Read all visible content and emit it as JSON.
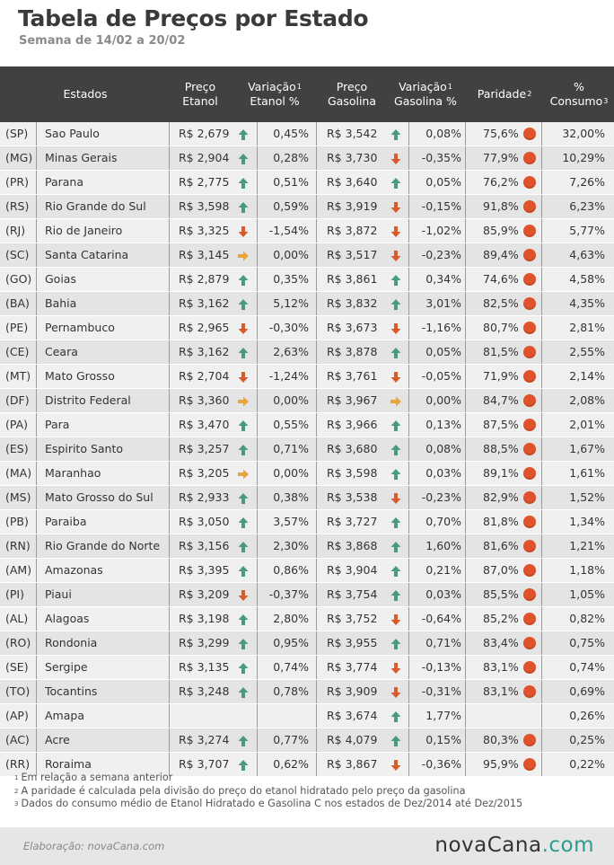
{
  "header": {
    "title": "Tabela de Preços por Estado",
    "subtitle": "Semana de 14/02 a 20/02"
  },
  "columns": {
    "estados": "Estados",
    "preco_etanol_1": "Preço",
    "preco_etanol_2": "Etanol",
    "var_etanol_1": "Variação",
    "var_etanol_sup": "1",
    "var_etanol_2": "Etanol %",
    "preco_gas_1": "Preço",
    "preco_gas_2": "Gasolina",
    "var_gas_1": "Variação",
    "var_gas_sup": "1",
    "var_gas_2": "Gasolina %",
    "paridade": "Paridade",
    "paridade_sup": "2",
    "consumo_1": "%",
    "consumo_2": "Consumo",
    "consumo_sup": "3"
  },
  "icons": {
    "up_color": "#4a9a7c",
    "down_color": "#d95a2b",
    "neutral_color": "#e9a43a",
    "dot_color": "#e0522b"
  },
  "rows": [
    {
      "abbr": "(SP)",
      "state": "Sao Paulo",
      "p_etanol": "R$ 2,679",
      "e_dir": "up",
      "v_etanol": "0,45%",
      "p_gas": "R$ 3,542",
      "g_dir": "up",
      "v_gas": "0,08%",
      "paridade": "75,6%",
      "consumo": "32,00%"
    },
    {
      "abbr": "(MG)",
      "state": "Minas Gerais",
      "p_etanol": "R$ 2,904",
      "e_dir": "up",
      "v_etanol": "0,28%",
      "p_gas": "R$ 3,730",
      "g_dir": "down",
      "v_gas": "-0,35%",
      "paridade": "77,9%",
      "consumo": "10,29%"
    },
    {
      "abbr": "(PR)",
      "state": "Parana",
      "p_etanol": "R$ 2,775",
      "e_dir": "up",
      "v_etanol": "0,51%",
      "p_gas": "R$ 3,640",
      "g_dir": "up",
      "v_gas": "0,05%",
      "paridade": "76,2%",
      "consumo": "7,26%"
    },
    {
      "abbr": "(RS)",
      "state": "Rio Grande do Sul",
      "p_etanol": "R$ 3,598",
      "e_dir": "up",
      "v_etanol": "0,59%",
      "p_gas": "R$ 3,919",
      "g_dir": "down",
      "v_gas": "-0,15%",
      "paridade": "91,8%",
      "consumo": "6,23%"
    },
    {
      "abbr": "(RJ)",
      "state": "Rio de Janeiro",
      "p_etanol": "R$ 3,325",
      "e_dir": "down",
      "v_etanol": "-1,54%",
      "p_gas": "R$ 3,872",
      "g_dir": "down",
      "v_gas": "-1,02%",
      "paridade": "85,9%",
      "consumo": "5,77%"
    },
    {
      "abbr": "(SC)",
      "state": "Santa Catarina",
      "p_etanol": "R$ 3,145",
      "e_dir": "neutral",
      "v_etanol": "0,00%",
      "p_gas": "R$ 3,517",
      "g_dir": "down",
      "v_gas": "-0,23%",
      "paridade": "89,4%",
      "consumo": "4,63%"
    },
    {
      "abbr": "(GO)",
      "state": "Goias",
      "p_etanol": "R$ 2,879",
      "e_dir": "up",
      "v_etanol": "0,35%",
      "p_gas": "R$ 3,861",
      "g_dir": "up",
      "v_gas": "0,34%",
      "paridade": "74,6%",
      "consumo": "4,58%"
    },
    {
      "abbr": "(BA)",
      "state": "Bahia",
      "p_etanol": "R$ 3,162",
      "e_dir": "up",
      "v_etanol": "5,12%",
      "p_gas": "R$ 3,832",
      "g_dir": "up",
      "v_gas": "3,01%",
      "paridade": "82,5%",
      "consumo": "4,35%"
    },
    {
      "abbr": "(PE)",
      "state": "Pernambuco",
      "p_etanol": "R$ 2,965",
      "e_dir": "down",
      "v_etanol": "-0,30%",
      "p_gas": "R$ 3,673",
      "g_dir": "down",
      "v_gas": "-1,16%",
      "paridade": "80,7%",
      "consumo": "2,81%"
    },
    {
      "abbr": "(CE)",
      "state": "Ceara",
      "p_etanol": "R$ 3,162",
      "e_dir": "up",
      "v_etanol": "2,63%",
      "p_gas": "R$ 3,878",
      "g_dir": "up",
      "v_gas": "0,05%",
      "paridade": "81,5%",
      "consumo": "2,55%"
    },
    {
      "abbr": "(MT)",
      "state": "Mato Grosso",
      "p_etanol": "R$ 2,704",
      "e_dir": "down",
      "v_etanol": "-1,24%",
      "p_gas": "R$ 3,761",
      "g_dir": "down",
      "v_gas": "-0,05%",
      "paridade": "71,9%",
      "consumo": "2,14%"
    },
    {
      "abbr": "(DF)",
      "state": "Distrito Federal",
      "p_etanol": "R$ 3,360",
      "e_dir": "neutral",
      "v_etanol": "0,00%",
      "p_gas": "R$ 3,967",
      "g_dir": "neutral",
      "v_gas": "0,00%",
      "paridade": "84,7%",
      "consumo": "2,08%"
    },
    {
      "abbr": "(PA)",
      "state": "Para",
      "p_etanol": "R$ 3,470",
      "e_dir": "up",
      "v_etanol": "0,55%",
      "p_gas": "R$ 3,966",
      "g_dir": "up",
      "v_gas": "0,13%",
      "paridade": "87,5%",
      "consumo": "2,01%"
    },
    {
      "abbr": "(ES)",
      "state": "Espirito Santo",
      "p_etanol": "R$ 3,257",
      "e_dir": "up",
      "v_etanol": "0,71%",
      "p_gas": "R$ 3,680",
      "g_dir": "up",
      "v_gas": "0,08%",
      "paridade": "88,5%",
      "consumo": "1,67%"
    },
    {
      "abbr": "(MA)",
      "state": "Maranhao",
      "p_etanol": "R$ 3,205",
      "e_dir": "neutral",
      "v_etanol": "0,00%",
      "p_gas": "R$ 3,598",
      "g_dir": "up",
      "v_gas": "0,03%",
      "paridade": "89,1%",
      "consumo": "1,61%"
    },
    {
      "abbr": "(MS)",
      "state": "Mato Grosso do Sul",
      "p_etanol": "R$ 2,933",
      "e_dir": "up",
      "v_etanol": "0,38%",
      "p_gas": "R$ 3,538",
      "g_dir": "down",
      "v_gas": "-0,23%",
      "paridade": "82,9%",
      "consumo": "1,52%"
    },
    {
      "abbr": "(PB)",
      "state": "Paraiba",
      "p_etanol": "R$ 3,050",
      "e_dir": "up",
      "v_etanol": "3,57%",
      "p_gas": "R$ 3,727",
      "g_dir": "up",
      "v_gas": "0,70%",
      "paridade": "81,8%",
      "consumo": "1,34%"
    },
    {
      "abbr": "(RN)",
      "state": "Rio Grande do Norte",
      "p_etanol": "R$ 3,156",
      "e_dir": "up",
      "v_etanol": "2,30%",
      "p_gas": "R$ 3,868",
      "g_dir": "up",
      "v_gas": "1,60%",
      "paridade": "81,6%",
      "consumo": "1,21%"
    },
    {
      "abbr": "(AM)",
      "state": "Amazonas",
      "p_etanol": "R$ 3,395",
      "e_dir": "up",
      "v_etanol": "0,86%",
      "p_gas": "R$ 3,904",
      "g_dir": "up",
      "v_gas": "0,21%",
      "paridade": "87,0%",
      "consumo": "1,18%"
    },
    {
      "abbr": "(PI)",
      "state": "Piaui",
      "p_etanol": "R$ 3,209",
      "e_dir": "down",
      "v_etanol": "-0,37%",
      "p_gas": "R$ 3,754",
      "g_dir": "up",
      "v_gas": "0,03%",
      "paridade": "85,5%",
      "consumo": "1,05%"
    },
    {
      "abbr": "(AL)",
      "state": "Alagoas",
      "p_etanol": "R$ 3,198",
      "e_dir": "up",
      "v_etanol": "2,80%",
      "p_gas": "R$ 3,752",
      "g_dir": "down",
      "v_gas": "-0,64%",
      "paridade": "85,2%",
      "consumo": "0,82%"
    },
    {
      "abbr": "(RO)",
      "state": "Rondonia",
      "p_etanol": "R$ 3,299",
      "e_dir": "up",
      "v_etanol": "0,95%",
      "p_gas": "R$ 3,955",
      "g_dir": "up",
      "v_gas": "0,71%",
      "paridade": "83,4%",
      "consumo": "0,75%"
    },
    {
      "abbr": "(SE)",
      "state": "Sergipe",
      "p_etanol": "R$ 3,135",
      "e_dir": "up",
      "v_etanol": "0,74%",
      "p_gas": "R$ 3,774",
      "g_dir": "down",
      "v_gas": "-0,13%",
      "paridade": "83,1%",
      "consumo": "0,74%"
    },
    {
      "abbr": "(TO)",
      "state": "Tocantins",
      "p_etanol": "R$ 3,248",
      "e_dir": "up",
      "v_etanol": "0,78%",
      "p_gas": "R$ 3,909",
      "g_dir": "down",
      "v_gas": "-0,31%",
      "paridade": "83,1%",
      "consumo": "0,69%"
    },
    {
      "abbr": "(AP)",
      "state": "Amapa",
      "p_etanol": "",
      "e_dir": "",
      "v_etanol": "",
      "p_gas": "R$ 3,674",
      "g_dir": "up",
      "v_gas": "1,77%",
      "paridade": "",
      "consumo": "0,26%"
    },
    {
      "abbr": "(AC)",
      "state": "Acre",
      "p_etanol": "R$ 3,274",
      "e_dir": "up",
      "v_etanol": "0,77%",
      "p_gas": "R$ 4,079",
      "g_dir": "up",
      "v_gas": "0,15%",
      "paridade": "80,3%",
      "consumo": "0,25%"
    },
    {
      "abbr": "(RR)",
      "state": "Roraima",
      "p_etanol": "R$ 3,707",
      "e_dir": "up",
      "v_etanol": "0,62%",
      "p_gas": "R$ 3,867",
      "g_dir": "down",
      "v_gas": "-0,36%",
      "paridade": "95,9%",
      "consumo": "0,22%"
    }
  ],
  "footnotes": {
    "n1_mark": "1",
    "n1": "Em relação a semana anterior",
    "n2_mark": "2",
    "n2": "A paridade é calculada pela divisão do preço do etanol hidratado pelo preço da gasolina",
    "n3_mark": "3",
    "n3": "Dados do consumo médio de Etanol Hidratado e Gasolina C nos estados de Dez/2014 até Dez/2015"
  },
  "footer": {
    "elaboracao": "Elaboração: novaCana.com",
    "logo_main": "novaCana",
    "logo_suffix": ".com"
  }
}
